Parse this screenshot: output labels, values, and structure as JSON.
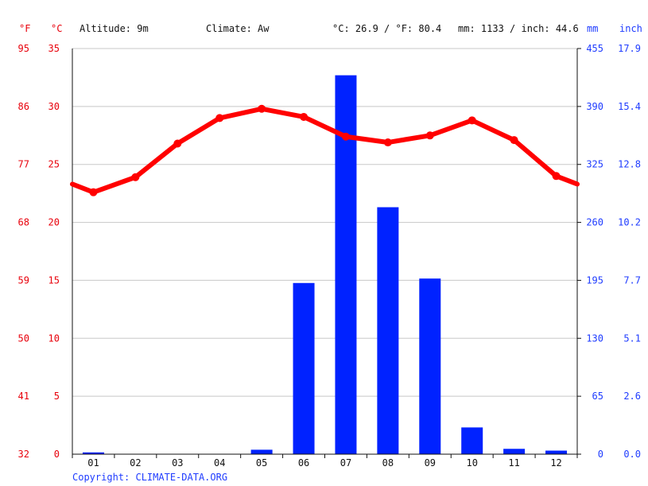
{
  "header": {
    "f_unit": "°F",
    "c_unit": "°C",
    "altitude": "Altitude: 9m",
    "climate": "Climate: Aw",
    "temp_avg": "°C: 26.9 / °F: 80.4",
    "precip_avg": "mm: 1133 / inch: 44.6",
    "mm_unit": "mm",
    "inch_unit": "inch"
  },
  "copyright": "Copyright: CLIMATE-DATA.ORG",
  "colors": {
    "temperature": "#ff0000",
    "precipitation": "#0022ff",
    "temp_axis_text": "#e8000b",
    "precip_axis_text": "#1f3cff",
    "grid": "#c8c8c8"
  },
  "axes": {
    "fahrenheit_ticks": [
      "95",
      "86",
      "77",
      "68",
      "59",
      "50",
      "41",
      "32"
    ],
    "celsius_ticks": [
      "35",
      "30",
      "25",
      "20",
      "15",
      "10",
      "5",
      "0"
    ],
    "mm_ticks": [
      "455",
      "390",
      "325",
      "260",
      "195",
      "130",
      "65",
      "0"
    ],
    "inch_ticks": [
      "17.9",
      "15.4",
      "12.8",
      "10.2",
      "7.7",
      "5.1",
      "2.6",
      "0.0"
    ]
  },
  "chart_data": {
    "type": "bar+line",
    "categories": [
      "01",
      "02",
      "03",
      "04",
      "05",
      "06",
      "07",
      "08",
      "09",
      "10",
      "11",
      "12"
    ],
    "series": [
      {
        "type": "bar",
        "axis": "mm",
        "values": [
          2,
          0,
          0,
          0,
          5,
          192,
          425,
          277,
          197,
          30,
          6,
          4
        ]
      },
      {
        "type": "line",
        "axis": "celsius",
        "values": [
          22.6,
          23.9,
          26.8,
          29.0,
          29.8,
          29.1,
          27.4,
          26.9,
          27.5,
          28.8,
          27.1,
          24.0
        ]
      }
    ],
    "celsius_range": [
      0,
      35
    ],
    "mm_range": [
      0,
      455
    ],
    "grid": true
  }
}
